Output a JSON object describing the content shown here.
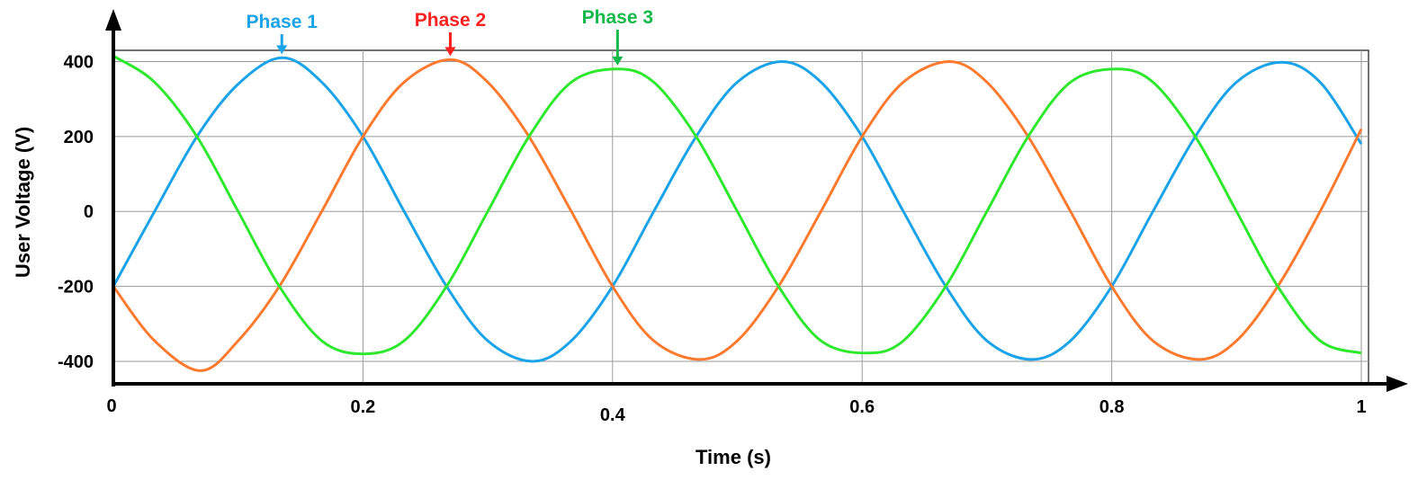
{
  "chart_data": {
    "type": "line",
    "xlabel": "Time (s)",
    "ylabel": "User Voltage (V)",
    "xlim": [
      0,
      1
    ],
    "ylim": [
      -460,
      430
    ],
    "xticks": [
      0,
      0.2,
      0.4,
      0.6,
      0.8,
      1
    ],
    "xtick_labels": [
      "0",
      "0.2",
      "0.4",
      "0.6",
      "0.8",
      "1"
    ],
    "yticks": [
      400,
      200,
      0,
      -200,
      -400
    ],
    "ytick_labels": [
      "400",
      "200",
      "0",
      "-200",
      "-400"
    ],
    "grid": true,
    "legend": "annotations",
    "series": [
      {
        "name": "Phase 1",
        "color": "#1aa3e8",
        "x": [
          0,
          0.033,
          0.067,
          0.1,
          0.135,
          0.167,
          0.2,
          0.233,
          0.267,
          0.3,
          0.336,
          0.367,
          0.4,
          0.433,
          0.467,
          0.5,
          0.536,
          0.567,
          0.6,
          0.633,
          0.667,
          0.7,
          0.736,
          0.767,
          0.8,
          0.833,
          0.867,
          0.9,
          0.936,
          0.967,
          1.0
        ],
        "y": [
          -200,
          0,
          200,
          340,
          410,
          345,
          200,
          0,
          -200,
          -345,
          -400,
          -345,
          -200,
          0,
          200,
          345,
          400,
          345,
          200,
          0,
          -200,
          -345,
          -395,
          -345,
          -200,
          0,
          200,
          345,
          398,
          345,
          180
        ]
      },
      {
        "name": "Phase 2",
        "color": "#ff7a2e",
        "x": [
          0,
          0.033,
          0.07,
          0.1,
          0.133,
          0.167,
          0.2,
          0.233,
          0.27,
          0.3,
          0.333,
          0.367,
          0.4,
          0.433,
          0.47,
          0.5,
          0.533,
          0.567,
          0.6,
          0.633,
          0.67,
          0.7,
          0.733,
          0.767,
          0.8,
          0.833,
          0.87,
          0.9,
          0.933,
          0.967,
          1.0
        ],
        "y": [
          -200,
          -345,
          -425,
          -345,
          -200,
          0,
          200,
          345,
          405,
          345,
          200,
          0,
          -200,
          -345,
          -395,
          -345,
          -200,
          0,
          200,
          345,
          400,
          345,
          200,
          0,
          -200,
          -345,
          -395,
          -345,
          -200,
          0,
          220
        ]
      },
      {
        "name": "Phase 3",
        "color": "#2ee82e",
        "x": [
          0,
          0.033,
          0.067,
          0.1,
          0.133,
          0.167,
          0.2,
          0.233,
          0.267,
          0.3,
          0.333,
          0.367,
          0.404,
          0.433,
          0.467,
          0.5,
          0.533,
          0.567,
          0.604,
          0.633,
          0.667,
          0.7,
          0.733,
          0.767,
          0.804,
          0.833,
          0.867,
          0.9,
          0.933,
          0.967,
          1.0
        ],
        "y": [
          415,
          345,
          200,
          0,
          -200,
          -345,
          -380,
          -345,
          -200,
          0,
          200,
          345,
          380,
          345,
          200,
          0,
          -200,
          -345,
          -378,
          -345,
          -200,
          0,
          200,
          345,
          380,
          345,
          200,
          0,
          -200,
          -345,
          -378
        ]
      }
    ],
    "annotations": [
      {
        "text": "Phase 1",
        "color": "#1aa3e8",
        "x": 0.135,
        "y": 410
      },
      {
        "text": "Phase 2",
        "color": "#ff2020",
        "x": 0.27,
        "y": 405
      },
      {
        "text": "Phase 3",
        "color": "#12b84a",
        "x": 0.404,
        "y": 380
      }
    ]
  }
}
